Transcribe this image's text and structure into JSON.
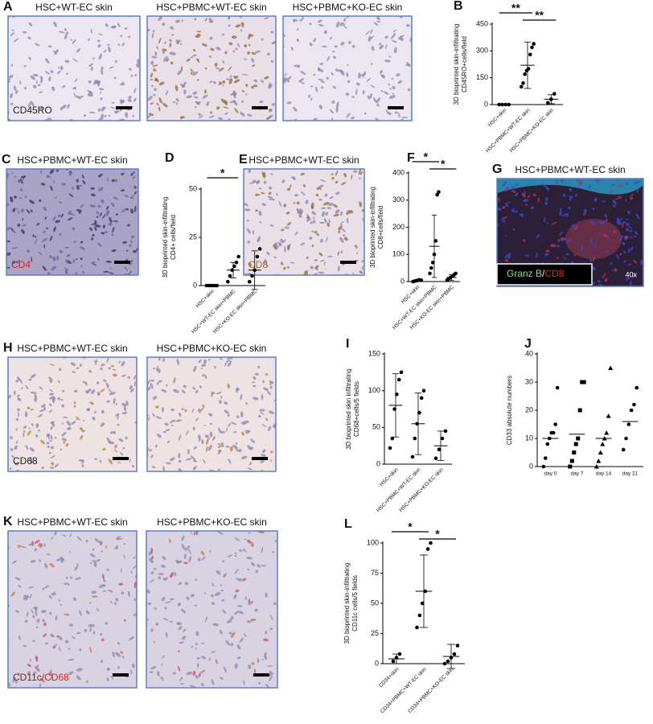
{
  "images": [
    {
      "letter": "A",
      "title": "HSC+WT-EC skin",
      "stain": [
        {
          "text": "CD45RO",
          "color": "#222222"
        }
      ]
    },
    {
      "title": "HSC+PBMC+WT-EC skin"
    },
    {
      "title": "HSC+PBMC+KO-EC skin"
    },
    {
      "letter": "C",
      "title": "HSC+PBMC+WT-EC skin",
      "stain": [
        {
          "text": "CD4",
          "color": "#e02020"
        }
      ]
    },
    {
      "letter": "E",
      "title": "HSC+PBMC+WT-EC skin",
      "stain": [
        {
          "text": "CD8",
          "color": "#9a6a28"
        }
      ]
    },
    {
      "letter": "G",
      "title": "HSC+PBMC+WT-EC skin",
      "stain": [
        {
          "text": "Granz B",
          "color": "#8ee07a"
        },
        {
          "text": "/",
          "color": "#ffffff"
        },
        {
          "text": "CD8",
          "color": "#ee2222"
        }
      ],
      "magnification": "40x"
    },
    {
      "letter": "H",
      "title": "HSC+PBMC+WT-EC skin",
      "stain": [
        {
          "text": "CD68",
          "color": "#222222"
        }
      ]
    },
    {
      "title": "HSC+PBMC+KO-EC skin"
    },
    {
      "letter": "K",
      "title": "HSC+PBMC+WT-EC skin",
      "stain": [
        {
          "text": "CD11c/",
          "color": "#6a2a2a"
        },
        {
          "text": "CD68",
          "color": "#e02020"
        }
      ]
    },
    {
      "title": "HSC+PBMC+KO-EC skin"
    }
  ],
  "chart_data": [
    {
      "type": "dot",
      "letter": "B",
      "ylabel": [
        "3D bioprinted skin-infiltrating",
        "CD45RO+cells/field"
      ],
      "categories": [
        "HSC+skin",
        "HSC+PBMC+WT-EC skin",
        "HSC+PBMC+KO-EC skin"
      ],
      "values": [
        [
          0,
          0,
          0,
          0
        ],
        [
          100,
          120,
          170,
          190,
          200,
          280,
          320,
          340
        ],
        [
          10,
          30,
          60
        ]
      ],
      "means": [
        0,
        220,
        30
      ],
      "sd": [
        0,
        130,
        25
      ],
      "markers": [
        "circle",
        "circle",
        "circle"
      ],
      "ylim": [
        0,
        450
      ],
      "yticks": [
        0,
        150,
        300,
        450
      ],
      "comparisons": [
        {
          "label": "**",
          "between": [
            0,
            1
          ]
        },
        {
          "label": "**",
          "between": [
            1,
            2
          ]
        }
      ]
    },
    {
      "type": "dot",
      "letter": "D",
      "ylabel": [
        "3D bioprinted skin-infiltrating",
        "CD4+ cells/field"
      ],
      "categories": [
        "HSC+skin",
        "HSC+WT-EC skin+PBMC",
        "HSC+KO-EC skin+PBMC"
      ],
      "values": [
        [
          0,
          0,
          0,
          0,
          0
        ],
        [
          2,
          5,
          8,
          10,
          12,
          15
        ],
        [
          2,
          5,
          8,
          15,
          19
        ]
      ],
      "means": [
        0,
        8,
        8
      ],
      "sd": [
        0,
        4,
        10
      ],
      "markers": [
        "circle",
        "circle",
        "circle"
      ],
      "ylim": [
        0,
        50
      ],
      "yticks": [
        0,
        25,
        50
      ],
      "comparisons": [
        {
          "label": "*",
          "between": [
            0,
            1
          ]
        }
      ]
    },
    {
      "type": "dot",
      "letter": "F",
      "ylabel": [
        "3D bioprinted skin-infiltrating",
        "CD8+cells/field"
      ],
      "categories": [
        "HSC+skin",
        "HSC+WT-EC skin+PBMC",
        "HSC+KO-EC skin+PBMC"
      ],
      "values": [
        [
          0,
          2,
          4,
          6,
          5
        ],
        [
          30,
          50,
          70,
          100,
          150,
          320,
          330
        ],
        [
          5,
          10,
          15,
          20,
          25,
          30
        ]
      ],
      "means": [
        3,
        130,
        15
      ],
      "sd": [
        3,
        115,
        10
      ],
      "markers": [
        "circle",
        "circle",
        "circle"
      ],
      "ylim": [
        0,
        400
      ],
      "yticks": [
        0,
        100,
        200,
        300,
        400
      ],
      "comparisons": [
        {
          "label": "*",
          "between": [
            0,
            1
          ]
        },
        {
          "label": "*",
          "between": [
            1,
            2
          ]
        }
      ]
    },
    {
      "type": "dot",
      "letter": "I",
      "ylabel": [
        "3D bioprinted skin infiltrating",
        "CD68+cells/5 fields"
      ],
      "categories": [
        "HSC+skin",
        "HSC+PBMC+WT-EC skin",
        "HSC+PBMC+KO-EC skin"
      ],
      "values": [
        [
          22,
          35,
          75,
          95,
          115,
          125
        ],
        [
          10,
          35,
          55,
          70,
          90,
          100
        ],
        [
          8,
          20,
          35,
          45
        ]
      ],
      "means": [
        80,
        55,
        25
      ],
      "sd": [
        43,
        42,
        20
      ],
      "markers": [
        "circle",
        "circle",
        "circle"
      ],
      "ylim": [
        0,
        150
      ],
      "yticks": [
        0,
        50,
        100,
        150
      ],
      "comparisons": []
    },
    {
      "type": "dot",
      "letter": "J",
      "ylabel": [
        "CD33 absolute numbers"
      ],
      "categories": [
        "day 0",
        "day 7",
        "day 14",
        "day 21"
      ],
      "values": [
        [
          0,
          3,
          8,
          10,
          12,
          12,
          15,
          28
        ],
        [
          0,
          2,
          5,
          8,
          10,
          20,
          30,
          30
        ],
        [
          0,
          2,
          5,
          8,
          10,
          12,
          18,
          35
        ],
        [
          6,
          10,
          15,
          20,
          22,
          28
        ]
      ],
      "means": [
        10,
        11.5,
        10,
        16
      ],
      "markers": [
        "circle",
        "square",
        "triangle",
        "circle"
      ],
      "ylim": [
        0,
        40
      ],
      "yticks": [
        0,
        10,
        20,
        30,
        40
      ],
      "comparisons": []
    },
    {
      "type": "dot",
      "letter": "L",
      "ylabel": [
        "3D bioprinted skin-infiltrating",
        "CD11c cells/5 fields"
      ],
      "categories": [
        "CD34+skin",
        "CD34+PBMC+WT-EC skin",
        "CD34+PBMC+KO-EC skin"
      ],
      "values": [
        [
          2,
          5,
          8
        ],
        [
          30,
          40,
          50,
          60,
          95,
          100
        ],
        [
          0,
          2,
          5,
          8,
          15
        ]
      ],
      "means": [
        4,
        60,
        6
      ],
      "sd": [
        4,
        30,
        10
      ],
      "markers": [
        "circle",
        "circle",
        "circle"
      ],
      "ylim": [
        0,
        100
      ],
      "yticks": [
        0,
        25,
        50,
        75,
        100
      ],
      "comparisons": [
        {
          "label": "*",
          "between": [
            0,
            1
          ]
        },
        {
          "label": "*",
          "between": [
            1,
            2
          ]
        }
      ]
    }
  ]
}
